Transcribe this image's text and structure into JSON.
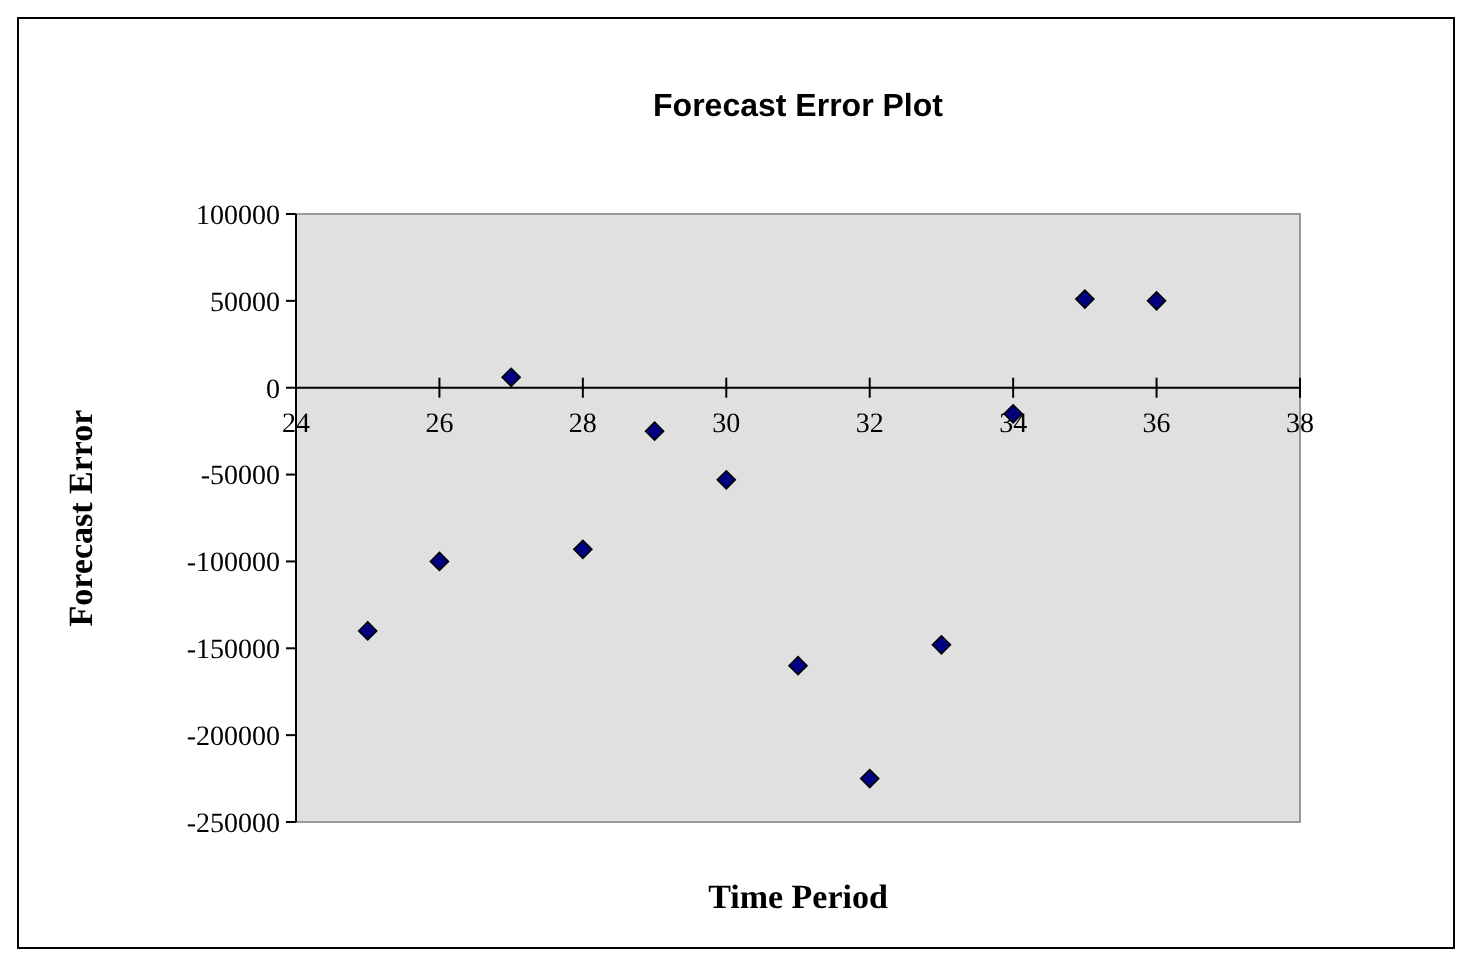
{
  "chart_data": {
    "type": "scatter",
    "title": "Forecast Error Plot",
    "xlabel": "Time Period",
    "ylabel": "Forecast Error",
    "x": [
      25,
      26,
      27,
      28,
      29,
      30,
      31,
      32,
      33,
      34,
      35,
      36
    ],
    "series": [
      {
        "color": "#000080",
        "values": [
          -140000,
          -100000,
          6000,
          -93000,
          -25000,
          -53000,
          -160000,
          -225000,
          -148000,
          -15000,
          51000,
          50000
        ]
      }
    ],
    "xlim": [
      24,
      38
    ],
    "xticks": [
      24,
      26,
      28,
      30,
      32,
      34,
      36,
      38
    ],
    "ylim": [
      -250000,
      100000
    ],
    "yticks": [
      -250000,
      -200000,
      -150000,
      -100000,
      -50000,
      0,
      50000,
      100000
    ],
    "marker": "diamond"
  }
}
